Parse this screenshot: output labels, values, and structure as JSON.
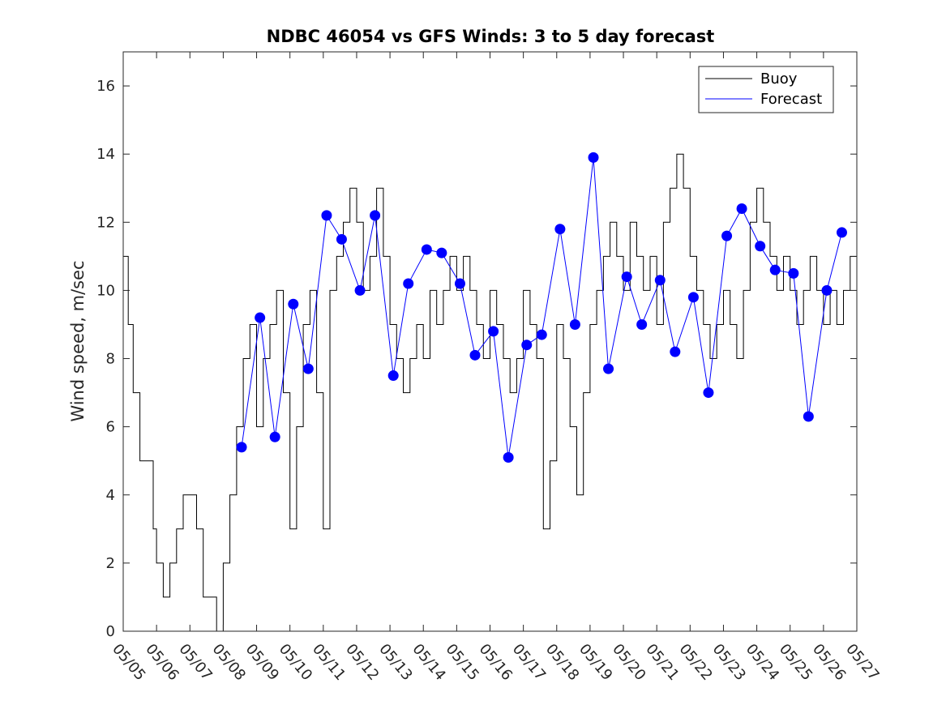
{
  "chart_data": {
    "type": "line",
    "title": "NDBC 46054 vs GFS Winds: 3 to 5 day forecast",
    "xlabel": "",
    "ylabel": "Wind speed, m/sec",
    "xlim": [
      0,
      22
    ],
    "ylim": [
      0,
      17
    ],
    "y_ticks": [
      0,
      2,
      4,
      6,
      8,
      10,
      12,
      14,
      16
    ],
    "x_tick_labels": [
      "05/05",
      "05/06",
      "05/07",
      "05/08",
      "05/09",
      "05/10",
      "05/11",
      "05/12",
      "05/13",
      "05/14",
      "05/15",
      "05/16",
      "05/17",
      "05/18",
      "05/19",
      "05/20",
      "05/21",
      "05/22",
      "05/23",
      "05/24",
      "05/25",
      "05/26",
      "05/27"
    ],
    "grid": false,
    "legend_position": "top-right",
    "legend": [
      {
        "label": "Buoy",
        "color": "#000000"
      },
      {
        "label": "Forecast",
        "color": "#0000ff"
      }
    ],
    "series": [
      {
        "name": "Buoy",
        "color": "#000000",
        "x": [
          0.0,
          0.15,
          0.3,
          0.5,
          0.7,
          0.9,
          1.0,
          1.2,
          1.4,
          1.6,
          1.8,
          2.0,
          2.2,
          2.4,
          2.6,
          2.8,
          3.0,
          3.2,
          3.4,
          3.6,
          3.8,
          4.0,
          4.2,
          4.4,
          4.6,
          4.8,
          5.0,
          5.2,
          5.4,
          5.6,
          5.8,
          6.0,
          6.2,
          6.4,
          6.6,
          6.8,
          7.0,
          7.2,
          7.4,
          7.6,
          7.8,
          8.0,
          8.2,
          8.4,
          8.6,
          8.8,
          9.0,
          9.2,
          9.4,
          9.6,
          9.8,
          10.0,
          10.2,
          10.4,
          10.6,
          10.8,
          11.0,
          11.2,
          11.4,
          11.6,
          11.8,
          12.0,
          12.2,
          12.4,
          12.6,
          12.8,
          13.0,
          13.2,
          13.4,
          13.6,
          13.8,
          14.0,
          14.2,
          14.4,
          14.6,
          14.8,
          15.0,
          15.2,
          15.4,
          15.6,
          15.8,
          16.0,
          16.2,
          16.4,
          16.6,
          16.8,
          17.0,
          17.2,
          17.4,
          17.6,
          17.8,
          18.0,
          18.2,
          18.4,
          18.6,
          18.8,
          19.0,
          19.2,
          19.4,
          19.6,
          19.8,
          20.0,
          20.2,
          20.4,
          20.6,
          20.8,
          21.0,
          21.2,
          21.4,
          21.6,
          21.8,
          22.0
        ],
        "y": [
          11,
          9,
          7,
          5,
          5,
          3,
          2,
          1,
          2,
          3,
          4,
          4,
          3,
          1,
          1,
          0,
          2,
          4,
          6,
          8,
          9,
          6,
          8,
          9,
          10,
          7,
          3,
          6,
          9,
          10,
          7,
          3,
          10,
          11,
          12,
          13,
          12,
          10,
          11,
          13,
          11,
          9,
          8,
          7,
          8,
          9,
          8,
          10,
          9,
          10,
          11,
          10,
          11,
          10,
          9,
          8,
          10,
          9,
          8,
          7,
          8,
          10,
          9,
          8,
          3,
          5,
          9,
          8,
          6,
          4,
          7,
          9,
          10,
          11,
          12,
          11,
          10,
          12,
          11,
          10,
          11,
          9,
          12,
          13,
          14,
          13,
          11,
          10,
          9,
          8,
          9,
          10,
          9,
          8,
          10,
          12,
          13,
          12,
          11,
          10,
          11,
          10,
          9,
          10,
          11,
          10,
          9,
          10,
          9,
          10,
          11,
          12
        ]
      },
      {
        "name": "Forecast",
        "color": "#0000ff",
        "x": [
          3.55,
          4.1,
          4.55,
          5.1,
          5.55,
          6.1,
          6.55,
          7.1,
          7.55,
          8.1,
          8.55,
          9.1,
          9.55,
          10.1,
          10.55,
          11.1,
          11.55,
          12.1,
          12.55,
          13.1,
          13.55,
          14.1,
          14.55,
          15.1,
          15.55,
          16.1,
          16.55,
          17.1,
          17.55,
          18.1,
          18.55,
          19.1,
          19.55,
          20.1,
          20.55,
          21.1,
          21.55
        ],
        "y": [
          5.4,
          9.2,
          5.7,
          9.6,
          7.7,
          12.2,
          11.5,
          10.0,
          12.2,
          7.5,
          10.2,
          11.2,
          11.1,
          10.2,
          8.1,
          8.8,
          5.1,
          8.4,
          8.7,
          11.8,
          9.0,
          13.9,
          7.7,
          10.4,
          9.0,
          10.3,
          8.2,
          9.8,
          7.0,
          11.6,
          12.4,
          11.3,
          10.6,
          10.5,
          6.3,
          10.0,
          11.7
        ]
      }
    ]
  }
}
